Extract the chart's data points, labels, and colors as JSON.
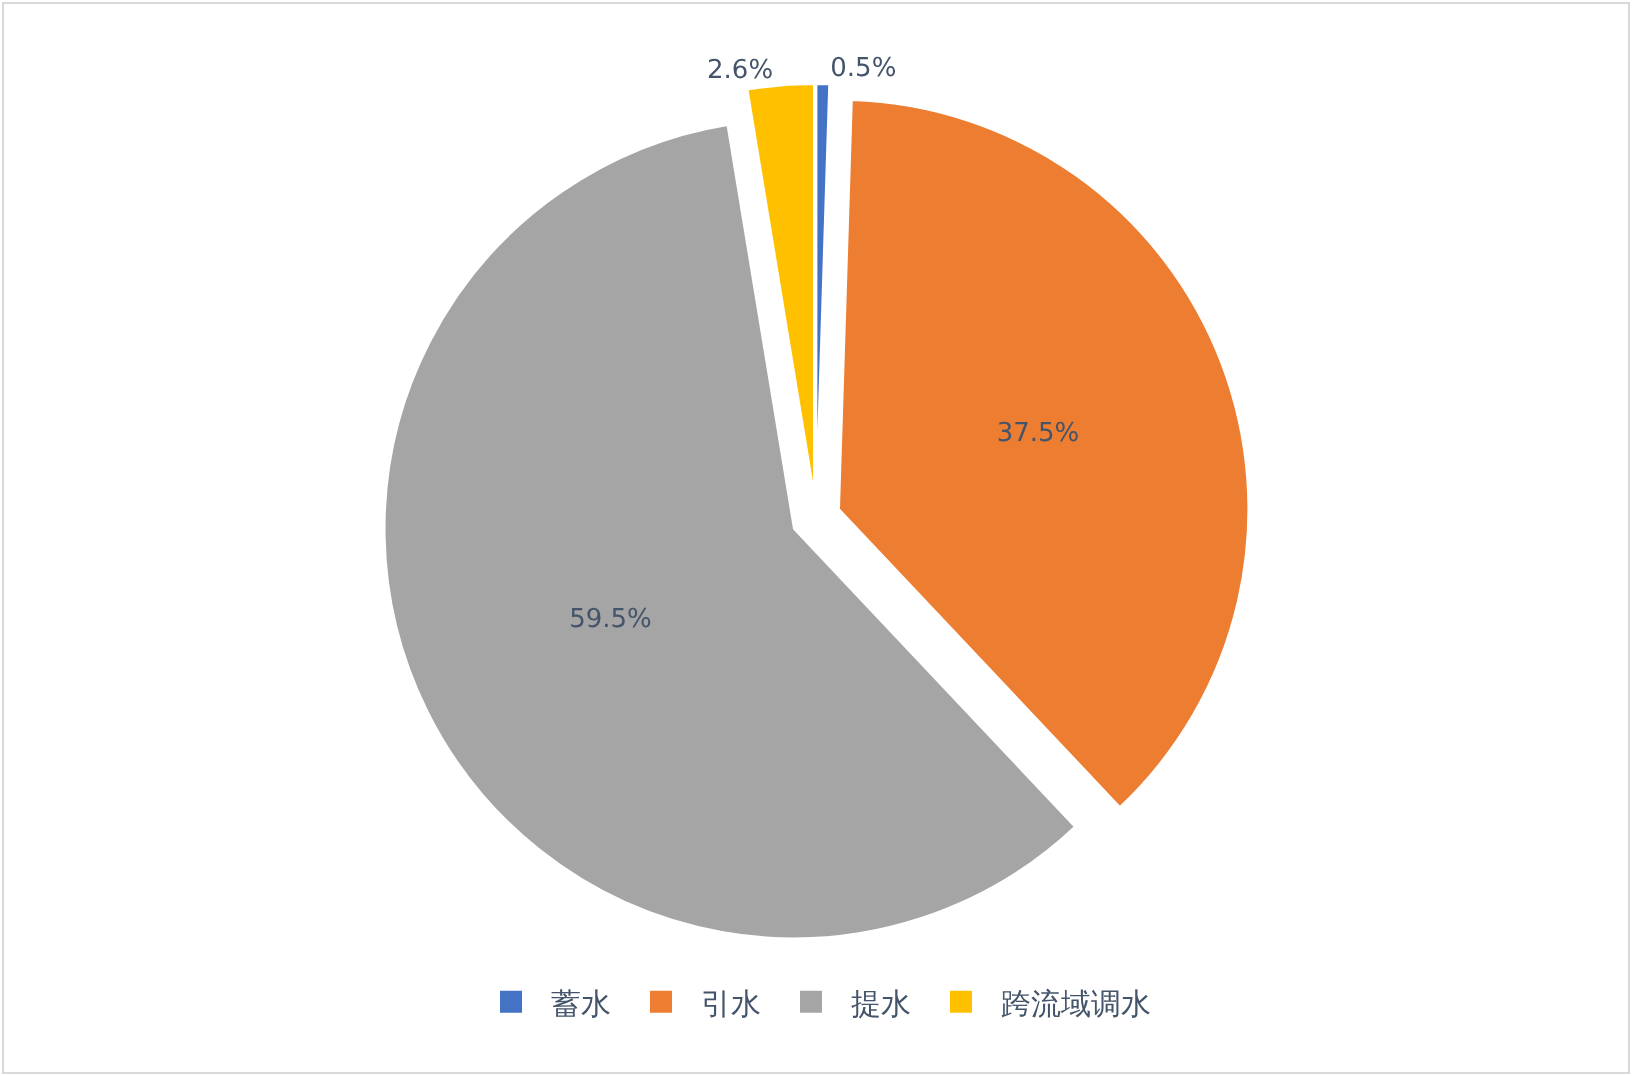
{
  "chart_data": {
    "type": "pie",
    "categories": [
      "蓄水",
      "引水",
      "提水",
      "跨流域调水"
    ],
    "values": [
      0.5,
      37.5,
      59.5,
      2.6
    ],
    "colors": [
      "#4472c4",
      "#ed7d31",
      "#a5a5a5",
      "#ffc000"
    ],
    "value_labels": [
      "0.5%",
      "37.5%",
      "59.5%",
      "2.6%"
    ],
    "legend": "bottom"
  }
}
